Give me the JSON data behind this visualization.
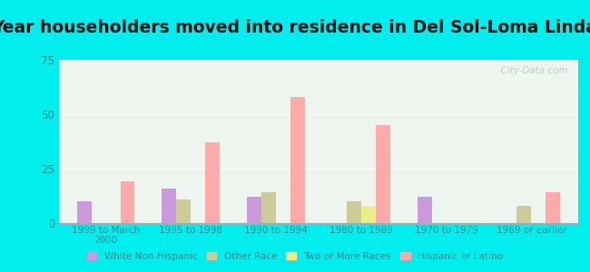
{
  "title": "Year householders moved into residence in Del Sol-Loma Linda",
  "categories": [
    "1999 to March\n2000",
    "1995 to 1998",
    "1990 to 1994",
    "1980 to 1989",
    "1970 to 1979",
    "1969 or earlier"
  ],
  "series": {
    "White Non-Hispanic": [
      10,
      16,
      12,
      0,
      12,
      0
    ],
    "Other Race": [
      0,
      11,
      14,
      10,
      0,
      8
    ],
    "Two or More Races": [
      0,
      0,
      0,
      8,
      0,
      0
    ],
    "Hispanic or Latino": [
      19,
      37,
      58,
      45,
      0,
      14
    ]
  },
  "colors": {
    "White Non-Hispanic": "#cc99dd",
    "Other Race": "#cccc99",
    "Two or More Races": "#eeee88",
    "Hispanic or Latino": "#ffaaaa"
  },
  "ylim": [
    0,
    75
  ],
  "yticks": [
    0,
    25,
    50,
    75
  ],
  "background_color": "#00eeee",
  "plot_bg": "#eef5ee",
  "watermark": "  City-Data.com",
  "bar_width": 0.17,
  "title_fontsize": 13.5,
  "grid_color": "#ffffff",
  "tick_color": "#338888",
  "title_color": "#111111"
}
